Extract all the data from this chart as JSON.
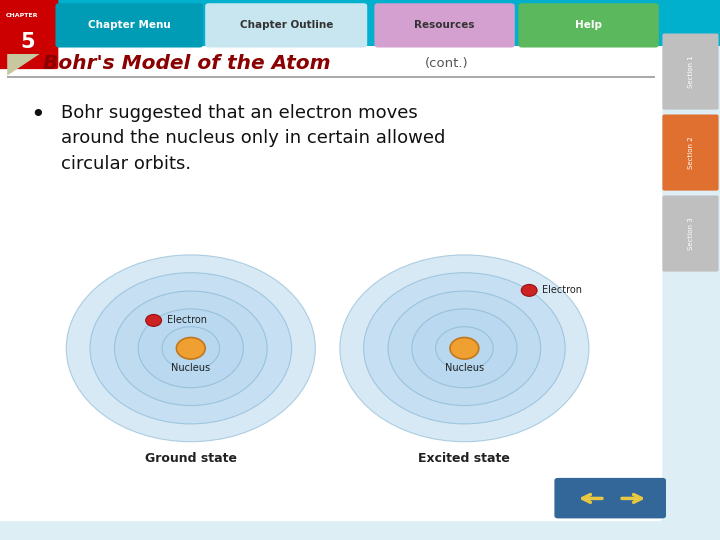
{
  "title_main": "Bohr's Model of the Atom",
  "title_cont": "(cont.)",
  "title_main_color": "#8B0000",
  "title_cont_color": "#444444",
  "bullet_text": "Bohr suggested that an electron moves\naround the nucleus only in certain allowed\ncircular orbits.",
  "bullet_color": "#111111",
  "bg_color": "#ddeef5",
  "top_bar_color": "#00b0cc",
  "chapter_box_color": "#cc0000",
  "nav_buttons": [
    "Chapter Menu",
    "Chapter Outline",
    "Resources",
    "Help"
  ],
  "nav_colors": [
    "#009bb5",
    "#c8e6f0",
    "#d4a0d0",
    "#5cb85c"
  ],
  "ground_state_label": "Ground state",
  "excited_state_label": "Excited state",
  "nucleus_label": "Nucleus",
  "electron_label": "Electron",
  "nucleus_color": "#f0a030",
  "electron_color": "#cc2222",
  "section_labels": [
    "Section 1",
    "Section 2",
    "Section 3"
  ],
  "section_colors": [
    "#c0bfbf",
    "#e07030",
    "#c0bfbf"
  ]
}
